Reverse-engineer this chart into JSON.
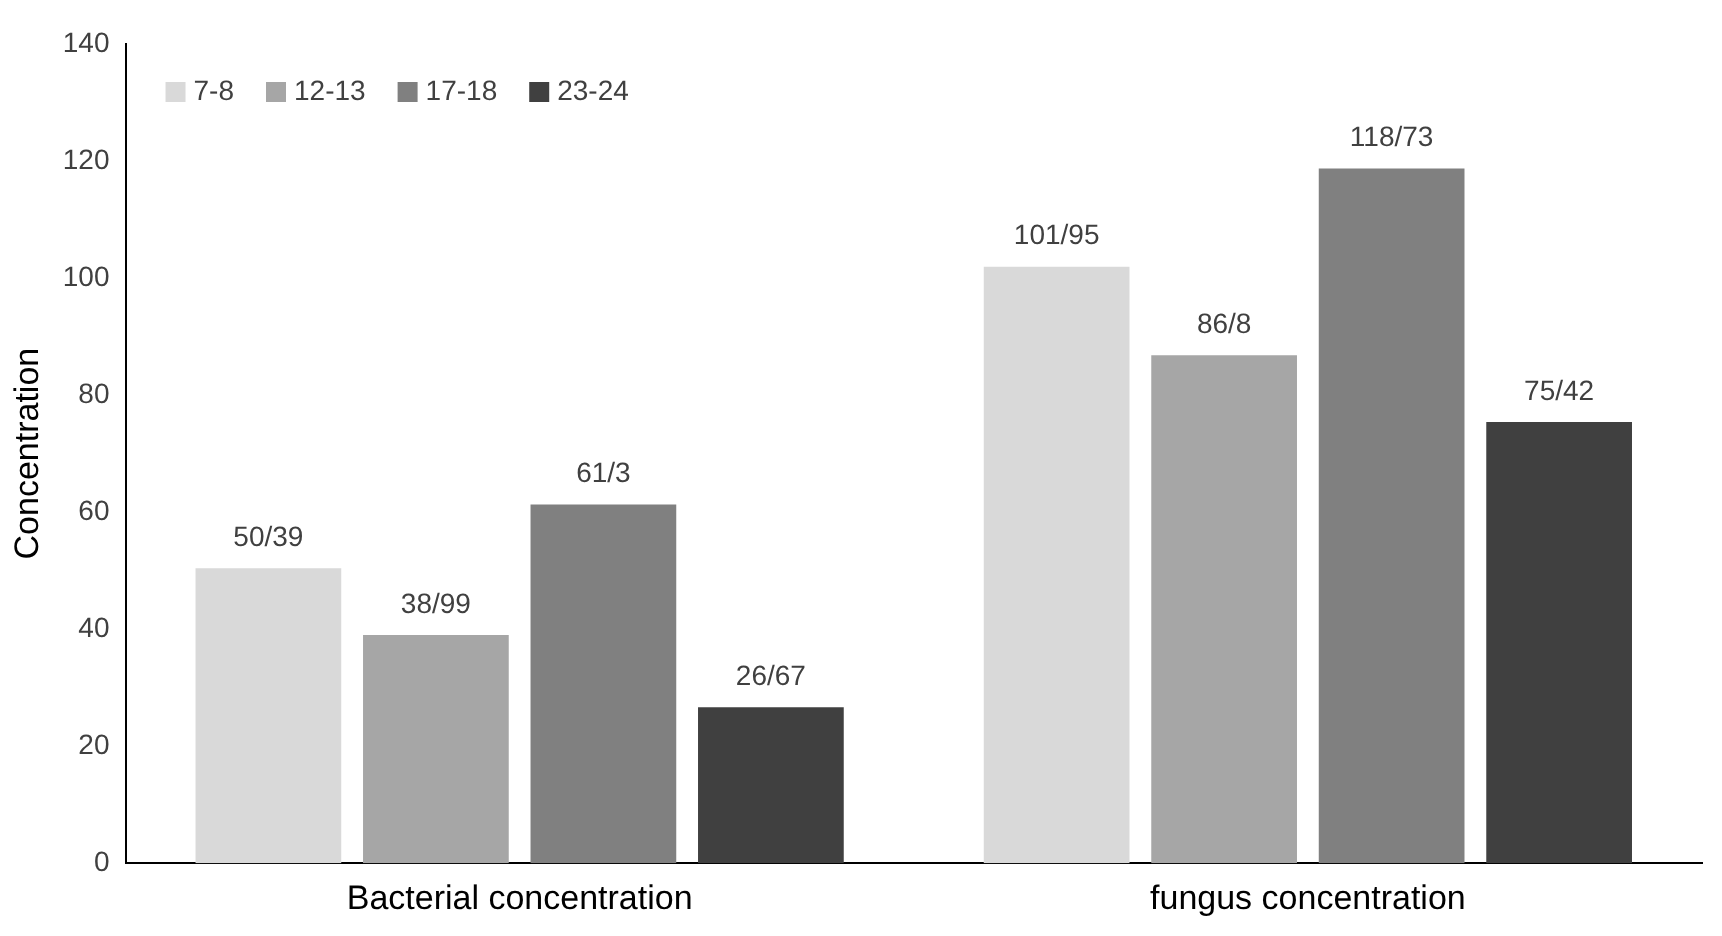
{
  "chart_data": {
    "type": "bar",
    "ylabel": "Concentration",
    "categories": [
      "Bacterial concentration",
      "fungus concentration"
    ],
    "ylim": [
      0,
      140
    ],
    "yticks": [
      0,
      20,
      40,
      60,
      80,
      100,
      120,
      140
    ],
    "grid": false,
    "legend": "top left",
    "series": [
      {
        "name": "7-8",
        "color": "#d9d9d9",
        "values": [
          50.39,
          101.95
        ],
        "value_labels": [
          "50/39",
          "101/95"
        ]
      },
      {
        "name": "12-13",
        "color": "#a6a6a6",
        "values": [
          38.99,
          86.8
        ],
        "value_labels": [
          "38/99",
          "86/8"
        ]
      },
      {
        "name": "17-18",
        "color": "#808080",
        "values": [
          61.3,
          118.73
        ],
        "value_labels": [
          "61/3",
          "118/73"
        ]
      },
      {
        "name": "23-24",
        "color": "#404040",
        "values": [
          26.67,
          75.42
        ],
        "value_labels": [
          "26/67",
          "75/42"
        ]
      }
    ]
  }
}
